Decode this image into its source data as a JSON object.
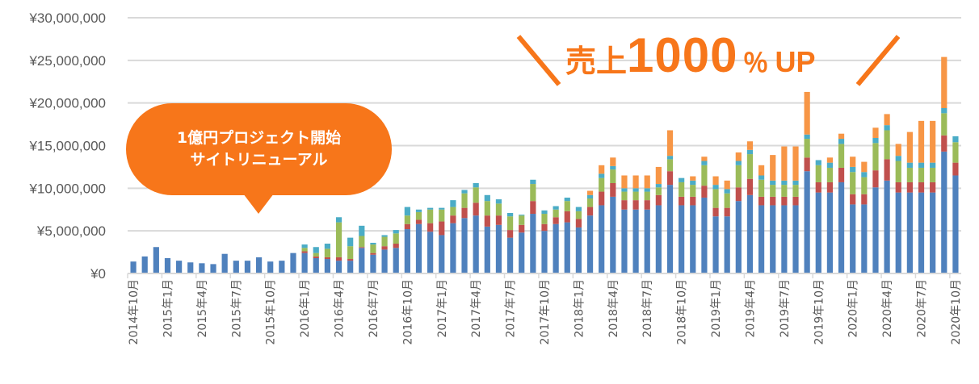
{
  "chart_data": {
    "type": "bar",
    "stacked": true,
    "title": "",
    "xlabel": "",
    "ylabel": "",
    "ylim": [
      0,
      30000000
    ],
    "y_tick_labels": [
      "¥0",
      "¥5,000,000",
      "¥10,000,000",
      "¥15,000,000",
      "¥20,000,000",
      "¥25,000,000",
      "¥30,000,000"
    ],
    "y_ticks": [
      0,
      5000000,
      10000000,
      15000000,
      20000000,
      25000000,
      30000000
    ],
    "x_tick_labels": [
      "2014年10月",
      "2015年1月",
      "2015年4月",
      "2015年7月",
      "2015年10月",
      "2016年1月",
      "2016年4月",
      "2016年7月",
      "2016年10月",
      "2017年1月",
      "2017年4月",
      "2017年7月",
      "2017年10月",
      "2018年1月",
      "2018年4月",
      "2018年7月",
      "2018年10月",
      "2019年1月",
      "2019年4月",
      "2019年7月",
      "2019年10月",
      "2020年1月",
      "2020年4月",
      "2020年7月",
      "2020年10月"
    ],
    "x_tick_interval_months": 3,
    "grid": true,
    "legend": "none",
    "series": [
      {
        "color": "#4f81bd",
        "values": [
          1400000,
          2000000,
          3100000,
          1800000,
          1500000,
          1300000,
          1200000,
          1100000,
          2300000,
          1500000,
          1500000,
          1900000,
          1400000,
          1500000,
          2400000,
          2400000,
          1800000,
          1700000,
          1500000,
          1500000,
          3000000,
          2200000,
          2800000,
          3000000,
          5200000,
          5800000,
          4900000,
          4500000,
          5900000,
          6500000,
          6800000,
          5500000,
          5700000,
          4200000,
          4800000,
          7000000,
          5000000,
          5800000,
          6000000,
          5400000,
          6800000,
          8000000,
          9000000,
          7500000,
          7500000,
          7500000,
          8000000,
          10400000,
          8000000,
          8000000,
          8900000,
          6700000,
          6700000,
          8500000,
          9200000,
          8000000,
          8000000,
          8000000,
          8000000,
          12000000,
          9500000,
          9500000,
          10700000,
          8100000,
          8100000,
          10100000,
          10900000,
          9500000,
          9500000,
          9500000,
          9500000,
          14300000,
          11500000
        ]
      },
      {
        "color": "#c0504d",
        "values": [
          0,
          0,
          0,
          0,
          0,
          0,
          0,
          0,
          0,
          0,
          0,
          0,
          0,
          0,
          0,
          200000,
          200000,
          200000,
          400000,
          200000,
          100000,
          200000,
          400000,
          500000,
          600000,
          500000,
          1000000,
          1600000,
          900000,
          1200000,
          1500000,
          1300000,
          1100000,
          900000,
          900000,
          1500000,
          800000,
          800000,
          1300000,
          1000000,
          1000000,
          1600000,
          1600000,
          1100000,
          1100000,
          1100000,
          1200000,
          1600000,
          1000000,
          1000000,
          1400000,
          1000000,
          1000000,
          1600000,
          1900000,
          1000000,
          1000000,
          1000000,
          1000000,
          1600000,
          1200000,
          1200000,
          1700000,
          1200000,
          1200000,
          2000000,
          2500000,
          1200000,
          1200000,
          1200000,
          1200000,
          1900000,
          1500000
        ]
      },
      {
        "color": "#9bbb59",
        "values": [
          0,
          0,
          0,
          0,
          0,
          0,
          0,
          0,
          0,
          0,
          0,
          0,
          0,
          0,
          0,
          400000,
          400000,
          1000000,
          4100000,
          1500000,
          1300000,
          1000000,
          1100000,
          1200000,
          1000000,
          900000,
          1600000,
          1400000,
          1000000,
          1700000,
          1800000,
          1700000,
          1400000,
          1600000,
          1100000,
          2000000,
          1200000,
          900000,
          1200000,
          900000,
          1000000,
          1600000,
          1600000,
          1000000,
          1000000,
          1000000,
          900000,
          1400000,
          1700000,
          1400000,
          2400000,
          2200000,
          1700000,
          2600000,
          2900000,
          2000000,
          1400000,
          1400000,
          1400000,
          2200000,
          2000000,
          1700000,
          2800000,
          2600000,
          2000000,
          3200000,
          3400000,
          2500000,
          1700000,
          1700000,
          1700000,
          2600000,
          2400000
        ]
      },
      {
        "color": "#4bacc6",
        "values": [
          0,
          0,
          0,
          0,
          0,
          0,
          0,
          0,
          0,
          0,
          0,
          0,
          0,
          0,
          0,
          400000,
          700000,
          600000,
          600000,
          1000000,
          1200000,
          200000,
          200000,
          400000,
          1000000,
          300000,
          200000,
          200000,
          800000,
          400000,
          500000,
          700000,
          500000,
          400000,
          100000,
          500000,
          400000,
          400000,
          400000,
          500000,
          400000,
          500000,
          400000,
          400000,
          400000,
          400000,
          400000,
          400000,
          500000,
          500000,
          500000,
          500000,
          500000,
          500000,
          500000,
          500000,
          500000,
          500000,
          500000,
          500000,
          600000,
          600000,
          600000,
          600000,
          600000,
          600000,
          600000,
          600000,
          600000,
          600000,
          600000,
          600000,
          700000
        ]
      },
      {
        "color": "#f79646",
        "values": [
          0,
          0,
          0,
          0,
          0,
          0,
          0,
          0,
          0,
          0,
          0,
          0,
          0,
          0,
          0,
          0,
          0,
          0,
          0,
          0,
          0,
          0,
          0,
          0,
          0,
          0,
          0,
          0,
          0,
          0,
          0,
          0,
          0,
          0,
          0,
          0,
          0,
          0,
          0,
          0,
          500000,
          1000000,
          1000000,
          1500000,
          1500000,
          1500000,
          2000000,
          3000000,
          0,
          500000,
          500000,
          1000000,
          1000000,
          1000000,
          1000000,
          1200000,
          3000000,
          4000000,
          4000000,
          5000000,
          0,
          600000,
          600000,
          1200000,
          1200000,
          1200000,
          1300000,
          1400000,
          3600000,
          4900000,
          4900000,
          6000000,
          0
        ]
      }
    ]
  },
  "callout": {
    "line1": "1億円プロジェクト開始",
    "line2": "サイトリニューアル",
    "color": "#f7761a"
  },
  "headline": {
    "part1": "売上",
    "part2": "1000",
    "part3": "％",
    "part4": "UP",
    "color": "#f7761a"
  }
}
